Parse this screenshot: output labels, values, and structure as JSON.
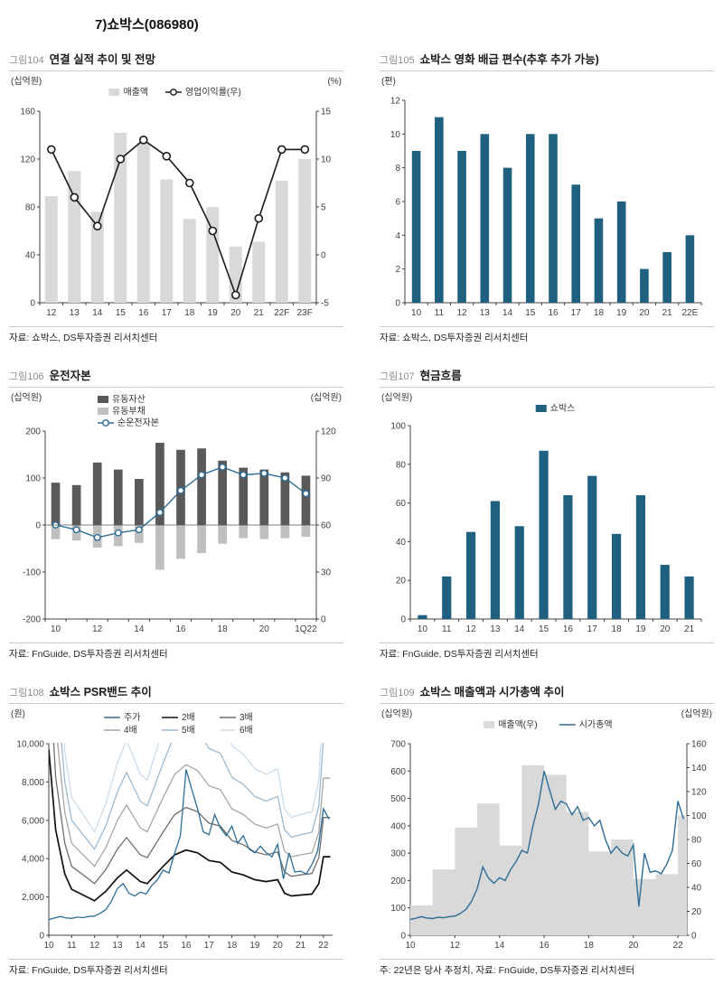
{
  "page": {
    "title": "7)쇼박스(086980)"
  },
  "chart_data": [
    {
      "fig": "그림104",
      "title": "연결 실적 추이 및 전망",
      "source": "자료: 쇼박스, DS투자증권 리서치센터",
      "type": "bar",
      "left_unit": "(십억원)",
      "right_unit": "(%)",
      "xmode": "category",
      "categories": [
        "12",
        "13",
        "14",
        "15",
        "16",
        "17",
        "18",
        "19",
        "20",
        "21",
        "22F",
        "23F"
      ],
      "xlabels": [
        "12",
        "13",
        "14",
        "15",
        "16",
        "17",
        "18",
        "19",
        "20",
        "21",
        "22F",
        "23F"
      ],
      "left_axis": {
        "min": 0,
        "max": 160,
        "ticks": [
          0,
          40,
          80,
          120,
          160
        ]
      },
      "right_axis": {
        "min": -5,
        "max": 15,
        "ticks": [
          -5,
          0,
          5,
          10,
          15
        ]
      },
      "legend": {
        "layout": "row",
        "items": [
          {
            "label": "매출액",
            "swatch": "box",
            "color": "#d9d9d9"
          },
          {
            "label": "영업이익률(우)",
            "swatch": "linemarker",
            "color": "#1a1a1a"
          }
        ]
      },
      "series": [
        {
          "name": "매출액",
          "type": "bar",
          "color": "#d9d9d9",
          "wfrac": 0.55,
          "values": [
            89,
            110,
            76,
            142,
            134,
            103,
            70,
            80,
            47,
            51,
            102,
            120
          ]
        },
        {
          "name": "영업이익률(우)",
          "type": "line",
          "axis": "right",
          "color": "#1a1a1a",
          "marker": 4,
          "width": 1.6,
          "values": [
            11,
            6,
            3,
            10,
            12,
            10.3,
            7.5,
            2.5,
            -4.2,
            3.8,
            11,
            11
          ]
        }
      ],
      "margins": {
        "l": 34,
        "r": 30,
        "t": 42,
        "b": 24
      }
    },
    {
      "fig": "그림105",
      "title": "쇼박스 영화 배급 편수(추후 추가 가능)",
      "source": "자료: 쇼박스, DS투자증권 리서치센터",
      "type": "bar",
      "left_unit": "(편)",
      "xmode": "category",
      "categories": [
        "10",
        "11",
        "12",
        "13",
        "14",
        "15",
        "16",
        "17",
        "18",
        "19",
        "20",
        "21",
        "22E"
      ],
      "xlabels": [
        "10",
        "11",
        "12",
        "13",
        "14",
        "15",
        "16",
        "17",
        "18",
        "19",
        "20",
        "21",
        "22E"
      ],
      "left_axis": {
        "min": 0,
        "max": 12,
        "ticks": [
          0,
          2,
          4,
          6,
          8,
          10,
          12
        ]
      },
      "series": [
        {
          "name": "배급 편수",
          "type": "bar",
          "color": "#1f5f7f",
          "wfrac": 0.38,
          "values": [
            9,
            11,
            9,
            10,
            8,
            10,
            10,
            7,
            5,
            6,
            2,
            3,
            4
          ]
        }
      ],
      "margins": {
        "l": 28,
        "r": 14,
        "t": 30,
        "b": 24
      }
    },
    {
      "fig": "그림106",
      "title": "운전자본",
      "source": "자료: FnGuide, DS투자증권 리서치센터",
      "type": "bar",
      "left_unit": "(십억원)",
      "right_unit": "(십억원)",
      "xmode": "category",
      "categories": [
        "10",
        "11",
        "12",
        "13",
        "14",
        "15",
        "16",
        "17",
        "18",
        "19",
        "20",
        "21",
        "1Q22"
      ],
      "xlabels": [
        "10",
        "",
        "12",
        "",
        "14",
        "",
        "16",
        "",
        "18",
        "",
        "20",
        "",
        "1Q22"
      ],
      "left_axis": {
        "min": -200,
        "max": 200,
        "ticks": [
          -200,
          -100,
          0,
          100,
          200
        ]
      },
      "right_axis": {
        "min": 0,
        "max": 120,
        "ticks": [
          0,
          30,
          60,
          90,
          120
        ]
      },
      "zero_line": true,
      "legend": {
        "layout": "col",
        "items": [
          {
            "label": "유동자산",
            "swatch": "box",
            "color": "#595959"
          },
          {
            "label": "유동부채",
            "swatch": "box",
            "color": "#bfbfbf"
          },
          {
            "label": "순운전자본",
            "swatch": "linemarker",
            "color": "#2e6d96"
          }
        ]
      },
      "series": [
        {
          "name": "유동자산",
          "type": "bar",
          "color": "#595959",
          "wfrac": 0.42,
          "values": [
            90,
            85,
            133,
            118,
            98,
            175,
            160,
            163,
            137,
            122,
            118,
            112,
            105
          ]
        },
        {
          "name": "유동부채",
          "type": "bar",
          "color": "#bfbfbf",
          "wfrac": 0.42,
          "values": [
            -30,
            -33,
            -48,
            -45,
            -38,
            -95,
            -72,
            -60,
            -40,
            -28,
            -30,
            -28,
            -25
          ]
        },
        {
          "name": "순운전자본",
          "type": "line",
          "axis": "right",
          "color": "#2e6d96",
          "marker": 3.2,
          "width": 1.4,
          "values": [
            60,
            57,
            52,
            55,
            57,
            68,
            82,
            92,
            97,
            92,
            93,
            90,
            80
          ]
        }
      ],
      "margins": {
        "l": 40,
        "r": 30,
        "t": 46,
        "b": 24
      }
    },
    {
      "fig": "그림107",
      "title": "현금흐름",
      "source": "자료: FnGuide, DS투자증권 리서치센터",
      "type": "bar",
      "left_unit": "(십억원)",
      "xmode": "category",
      "categories": [
        "10",
        "11",
        "12",
        "13",
        "14",
        "15",
        "16",
        "17",
        "18",
        "19",
        "20",
        "21"
      ],
      "xlabels": [
        "10",
        "11",
        "12",
        "13",
        "14",
        "15",
        "16",
        "17",
        "18",
        "19",
        "20",
        "21"
      ],
      "left_axis": {
        "min": 0,
        "max": 100,
        "ticks": [
          0,
          20,
          40,
          60,
          80,
          100
        ]
      },
      "legend": {
        "layout": "row",
        "items": [
          {
            "label": "쇼박스",
            "swatch": "box",
            "color": "#1f5f7f"
          }
        ]
      },
      "series": [
        {
          "name": "쇼박스",
          "type": "bar",
          "color": "#1f5f7f",
          "wfrac": 0.38,
          "values": [
            2,
            22,
            45,
            61,
            48,
            87,
            64,
            74,
            44,
            64,
            28,
            22
          ]
        }
      ],
      "margins": {
        "l": 34,
        "r": 14,
        "t": 40,
        "b": 24
      }
    },
    {
      "fig": "그림108",
      "title": "쇼박스 PSR밴드 추이",
      "source": "자료: FnGuide, DS투자증권 리서치센터",
      "type": "line",
      "left_unit": "(원)",
      "xmode": "linear",
      "xmin": 10,
      "xmax": 22.4,
      "xticks": [
        10,
        11,
        12,
        13,
        14,
        15,
        16,
        17,
        18,
        19,
        20,
        21,
        22
      ],
      "left_axis": {
        "min": 0,
        "max": 10000,
        "ticks": [
          0,
          2000,
          4000,
          6000,
          8000,
          10000
        ],
        "comma": true
      },
      "legend": {
        "layout": "grid3",
        "items": [
          {
            "label": "주가",
            "swatch": "line",
            "color": "#2e6d96"
          },
          {
            "label": "2배",
            "swatch": "line",
            "color": "#111111"
          },
          {
            "label": "3배",
            "swatch": "line",
            "color": "#6e6e6e"
          },
          {
            "label": "4배",
            "swatch": "line",
            "color": "#a6a6a6"
          },
          {
            "label": "5배",
            "swatch": "line",
            "color": "#9cb9d0"
          },
          {
            "label": "6배",
            "swatch": "line",
            "color": "#ccdbe8"
          }
        ]
      },
      "band": {
        "x": [
          10,
          10.3,
          10.7,
          11,
          11.5,
          12,
          12.5,
          13,
          13.4,
          14,
          14.3,
          15,
          15.5,
          16,
          16.5,
          17,
          17.5,
          18,
          18.5,
          19,
          19.5,
          20,
          20.3,
          20.6,
          21,
          21.5,
          21.8,
          22,
          22.3
        ],
        "base": [
          9700,
          5500,
          3200,
          2400,
          2100,
          1800,
          2300,
          3000,
          3400,
          2800,
          2700,
          3600,
          4200,
          4450,
          4300,
          3900,
          3800,
          3300,
          3150,
          2900,
          2800,
          2900,
          2200,
          2050,
          2100,
          2150,
          2700,
          4100,
          4100
        ]
      },
      "series": [
        {
          "name": "6배",
          "type": "bandline",
          "mult": 3,
          "color": "#ccdbe8",
          "width": 1.3
        },
        {
          "name": "5배",
          "type": "bandline",
          "mult": 2.5,
          "color": "#9cb9d0",
          "width": 1.3
        },
        {
          "name": "4배",
          "type": "bandline",
          "mult": 2,
          "color": "#a6a6a6",
          "width": 1.3
        },
        {
          "name": "3배",
          "type": "bandline",
          "mult": 1.5,
          "color": "#6e6e6e",
          "width": 1.3
        },
        {
          "name": "2배",
          "type": "bandline",
          "mult": 1,
          "color": "#111111",
          "width": 1.7
        },
        {
          "name": "주가",
          "type": "xyline",
          "color": "#2e6d96",
          "width": 1.3,
          "x0": 10,
          "dx": 0.25,
          "y": [
            820,
            900,
            980,
            900,
            880,
            950,
            920,
            980,
            1000,
            1150,
            1350,
            1800,
            2450,
            2700,
            2200,
            2050,
            2250,
            2150,
            2600,
            2900,
            3400,
            3250,
            4300,
            5200,
            8650,
            7600,
            6600,
            5400,
            5250,
            6300,
            5600,
            5200,
            5700,
            4800,
            5200,
            4500,
            4300,
            4650,
            4300,
            4100,
            4750,
            2950,
            4300,
            3300,
            3350,
            3200,
            3700,
            4400,
            6600,
            6050
          ]
        }
      ],
      "margins": {
        "l": 44,
        "r": 12,
        "t": 42,
        "b": 24
      }
    },
    {
      "fig": "그림109",
      "title": "쇼박스 매출액과 시가총액 추이",
      "source": "주: 22년은 당사 추정치, 자료: FnGuide, DS투자증권 리서치센터",
      "type": "area",
      "left_unit": "(십억원)",
      "right_unit": "(십억원)",
      "xmode": "linear",
      "xmin": 10,
      "xmax": 22.4,
      "xticks": [
        10,
        12,
        14,
        16,
        18,
        20,
        22
      ],
      "left_axis": {
        "min": 0,
        "max": 700,
        "ticks": [
          0,
          100,
          200,
          300,
          400,
          500,
          600,
          700
        ]
      },
      "right_axis": {
        "min": 0,
        "max": 160,
        "ticks": [
          0,
          20,
          40,
          60,
          80,
          100,
          120,
          140,
          160
        ]
      },
      "legend": {
        "layout": "row",
        "items": [
          {
            "label": "매출액(우)",
            "swatch": "box",
            "color": "#d9d9d9"
          },
          {
            "label": "시가총액",
            "swatch": "line",
            "color": "#2e6d96"
          }
        ]
      },
      "series": [
        {
          "name": "매출액(우)",
          "type": "steparea",
          "axis": "right",
          "color": "#d9d9d9",
          "x0": 10,
          "values": [
            25,
            55,
            90,
            110,
            75,
            142,
            134,
            103,
            70,
            80,
            47,
            51,
            100
          ]
        },
        {
          "name": "시가총액",
          "type": "xyline",
          "color": "#2e6d96",
          "width": 1.4,
          "x0": 10,
          "dx": 0.25,
          "y": [
            58,
            62,
            68,
            63,
            61,
            66,
            64,
            68,
            70,
            80,
            95,
            125,
            170,
            250,
            210,
            190,
            210,
            200,
            240,
            270,
            310,
            300,
            400,
            480,
            600,
            530,
            460,
            490,
            480,
            440,
            470,
            420,
            430,
            400,
            420,
            350,
            300,
            325,
            300,
            290,
            330,
            105,
            300,
            230,
            235,
            225,
            260,
            310,
            490,
            425
          ]
        }
      ],
      "margins": {
        "l": 34,
        "r": 30,
        "t": 42,
        "b": 24
      }
    }
  ]
}
